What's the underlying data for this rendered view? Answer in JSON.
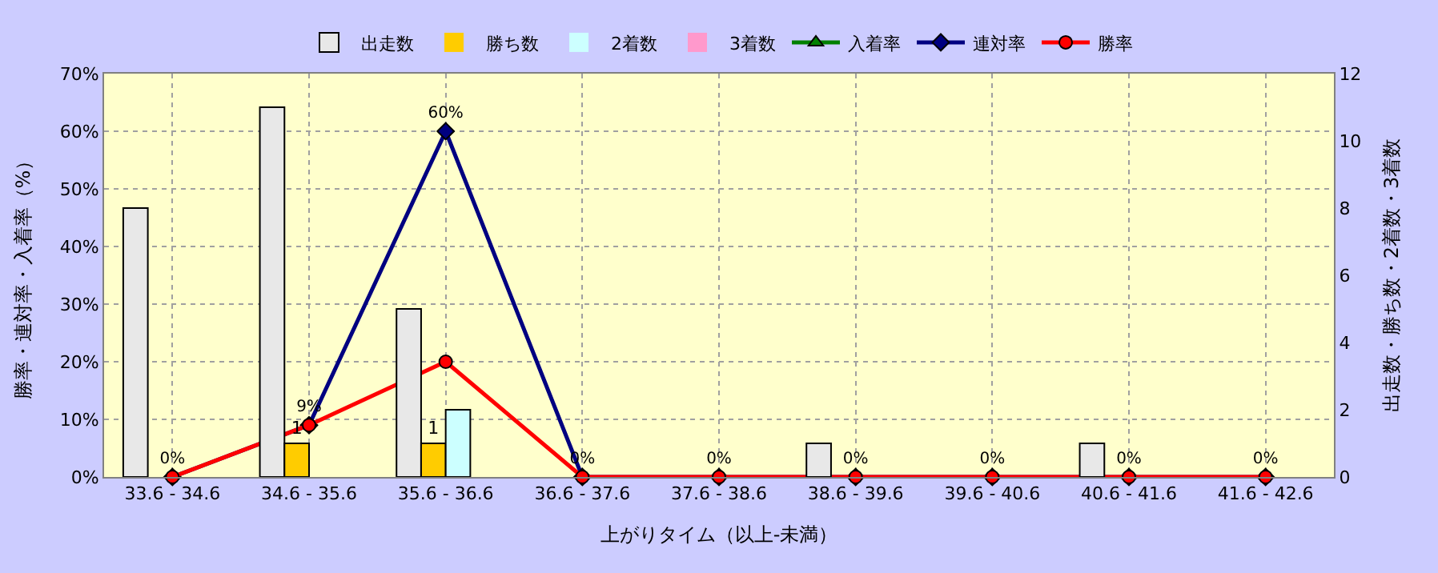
{
  "chart_data": {
    "type": "bar",
    "xlabel": "上がりタイム（以上-未満）",
    "ylabel": "勝率・連対率・入着率（%）",
    "y2label": "出走数・勝ち数・2着数・3着数",
    "categories": [
      "33.6 - 34.6",
      "34.6 - 35.6",
      "35.6 - 36.6",
      "36.6 - 37.6",
      "37.6 - 38.6",
      "38.6 - 39.6",
      "39.6 - 40.6",
      "40.6 - 41.6",
      "41.6 - 42.6"
    ],
    "series": [
      {
        "name": "出走数",
        "axis": "y2",
        "color": "#e8e8e8",
        "values": [
          8,
          11,
          5,
          0,
          0,
          1,
          0,
          1,
          0
        ]
      },
      {
        "name": "勝ち数",
        "axis": "y2",
        "color": "#ffcc00",
        "values": [
          0,
          1,
          1,
          0,
          0,
          0,
          0,
          0,
          0
        ],
        "value_labels": [
          null,
          "1",
          "1",
          null,
          null,
          null,
          null,
          null,
          null
        ]
      },
      {
        "name": "2着数",
        "axis": "y2",
        "color": "#ccffff",
        "values": [
          0,
          0,
          2,
          0,
          0,
          0,
          0,
          0,
          0
        ]
      },
      {
        "name": "3着数",
        "axis": "y2",
        "color": "#ff99cc",
        "values": [
          0,
          0,
          0,
          0,
          0,
          0,
          0,
          0,
          0
        ]
      },
      {
        "name": "入着率",
        "type": "line",
        "marker": "triangle",
        "color": "#008000",
        "values": [
          null,
          null,
          null,
          null,
          null,
          null,
          null,
          null,
          null
        ]
      },
      {
        "name": "連対率",
        "type": "line",
        "marker": "diamond",
        "color": "#000080",
        "values": [
          0,
          9,
          60,
          0,
          0,
          0,
          0,
          0,
          0
        ],
        "value_labels": [
          "0%",
          "9%",
          "60%",
          "0%",
          "0%",
          "0%",
          "0%",
          "0%",
          "0%"
        ]
      },
      {
        "name": "勝率",
        "type": "line",
        "marker": "circle",
        "color": "#ff0000",
        "values": [
          0,
          9,
          20,
          0,
          0,
          0,
          0,
          0,
          0
        ]
      }
    ],
    "ylim": [
      0,
      70
    ],
    "yticks": [
      {
        "value": 0,
        "label": "0%"
      },
      {
        "value": 10,
        "label": "10%"
      },
      {
        "value": 20,
        "label": "20%"
      },
      {
        "value": 30,
        "label": "30%"
      },
      {
        "value": 40,
        "label": "40%"
      },
      {
        "value": 50,
        "label": "50%"
      },
      {
        "value": 60,
        "label": "60%"
      },
      {
        "value": 70,
        "label": "70%"
      }
    ],
    "y2lim": [
      0,
      12
    ],
    "y2ticks": [
      0,
      2,
      4,
      6,
      8,
      10,
      12
    ],
    "grid": true,
    "legend": "top"
  }
}
